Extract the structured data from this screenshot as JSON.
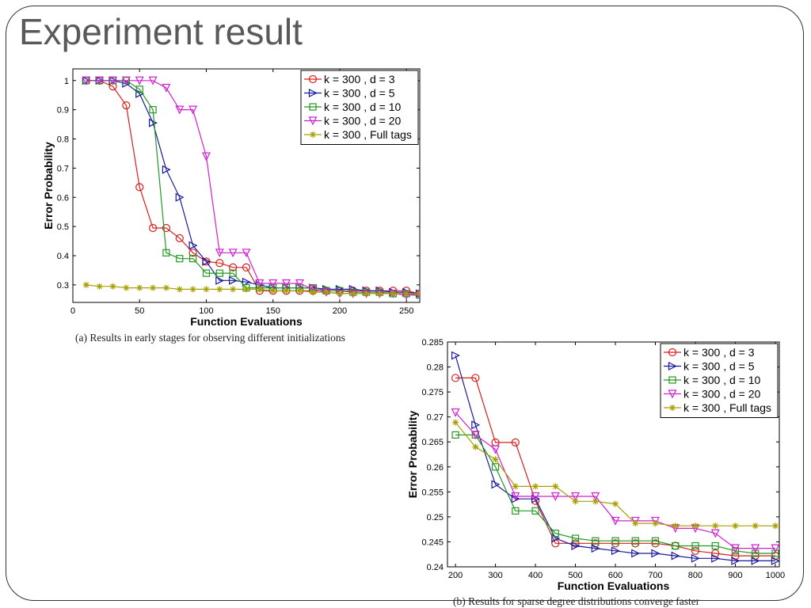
{
  "slide": {
    "title": "Experiment result",
    "caption_a": "(a) Results in early stages for observing different initializations",
    "caption_b": "(b) Results for sparse degree distributions converge faster"
  },
  "chart_data": [
    {
      "type": "line",
      "title": "",
      "xlabel": "Function Evaluations",
      "ylabel": "Error Probability",
      "xlim": [
        0,
        260
      ],
      "ylim": [
        0.24,
        1.04
      ],
      "xticks": [
        0,
        50,
        100,
        150,
        200,
        250
      ],
      "yticks": [
        0.3,
        0.4,
        0.5,
        0.6,
        0.7,
        0.8,
        0.9,
        1
      ],
      "legend_position": "top-right",
      "grid": false,
      "series": [
        {
          "name": "k = 300 , d = 3",
          "color": "#d62020",
          "marker": "circle",
          "x": [
            10,
            20,
            30,
            40,
            50,
            60,
            70,
            80,
            90,
            100,
            110,
            120,
            130,
            140,
            150,
            160,
            170,
            180,
            190,
            200,
            210,
            220,
            230,
            240,
            250,
            260
          ],
          "y": [
            1,
            1,
            0.98,
            0.915,
            0.635,
            0.495,
            0.495,
            0.46,
            0.41,
            0.38,
            0.375,
            0.36,
            0.36,
            0.28,
            0.28,
            0.28,
            0.28,
            0.28,
            0.28,
            0.28,
            0.28,
            0.28,
            0.28,
            0.28,
            0.28,
            0.27
          ]
        },
        {
          "name": "k = 300 , d = 5",
          "color": "#1a1aa0",
          "marker": "triangle-right",
          "x": [
            10,
            20,
            30,
            40,
            50,
            60,
            70,
            80,
            90,
            100,
            110,
            120,
            130,
            140,
            150,
            160,
            170,
            180,
            190,
            200,
            210,
            220,
            230,
            240,
            250,
            260
          ],
          "y": [
            1,
            1,
            1,
            0.99,
            0.955,
            0.855,
            0.695,
            0.6,
            0.435,
            0.38,
            0.315,
            0.315,
            0.31,
            0.3,
            0.29,
            0.29,
            0.29,
            0.29,
            0.285,
            0.285,
            0.285,
            0.28,
            0.28,
            0.275,
            0.275,
            0.27
          ]
        },
        {
          "name": "k = 300 , d = 10",
          "color": "#229922",
          "marker": "square",
          "x": [
            10,
            20,
            30,
            40,
            50,
            60,
            70,
            80,
            90,
            100,
            110,
            120,
            130,
            140,
            150,
            160,
            170,
            180,
            190,
            200,
            210,
            220,
            230,
            240,
            250,
            260
          ],
          "y": [
            1,
            1,
            1,
            1,
            0.97,
            0.9,
            0.41,
            0.39,
            0.39,
            0.34,
            0.34,
            0.34,
            0.29,
            0.29,
            0.29,
            0.29,
            0.29,
            0.29,
            0.28,
            0.28,
            0.275,
            0.275,
            0.275,
            0.27,
            0.27,
            0.265
          ]
        },
        {
          "name": "k = 300 , d = 20",
          "color": "#d020d0",
          "marker": "triangle-down",
          "x": [
            10,
            20,
            30,
            40,
            50,
            60,
            70,
            80,
            90,
            100,
            110,
            120,
            130,
            140,
            150,
            160,
            170,
            180,
            190,
            200,
            210,
            220,
            230,
            240,
            250,
            260
          ],
          "y": [
            1,
            1,
            1,
            1,
            1,
            1,
            0.975,
            0.9,
            0.9,
            0.74,
            0.41,
            0.41,
            0.41,
            0.305,
            0.305,
            0.305,
            0.305,
            0.285,
            0.275,
            0.27,
            0.27,
            0.27,
            0.27,
            0.27,
            0.265,
            0.265
          ]
        },
        {
          "name": "k = 300 , Full tags",
          "color": "#a8a000",
          "marker": "asterisk",
          "x": [
            10,
            20,
            30,
            40,
            50,
            60,
            70,
            80,
            90,
            100,
            110,
            120,
            130,
            140,
            150,
            160,
            170,
            180,
            190,
            200,
            210,
            220,
            230,
            240,
            250,
            260
          ],
          "y": [
            0.3,
            0.295,
            0.295,
            0.29,
            0.29,
            0.29,
            0.29,
            0.285,
            0.285,
            0.285,
            0.285,
            0.285,
            0.285,
            0.285,
            0.28,
            0.28,
            0.28,
            0.275,
            0.275,
            0.27,
            0.27,
            0.27,
            0.27,
            0.27,
            0.27,
            0.27
          ]
        }
      ]
    },
    {
      "type": "line",
      "title": "",
      "xlabel": "Function Evaluations",
      "ylabel": "Error Probability",
      "xlim": [
        180,
        1010
      ],
      "ylim": [
        0.24,
        0.285
      ],
      "xticks": [
        200,
        300,
        400,
        500,
        600,
        700,
        800,
        900,
        1000
      ],
      "yticks": [
        0.24,
        0.245,
        0.25,
        0.255,
        0.26,
        0.265,
        0.27,
        0.275,
        0.28,
        0.285
      ],
      "legend_position": "top-right",
      "grid": false,
      "series": [
        {
          "name": "k = 300 , d = 3",
          "color": "#d62020",
          "marker": "circle",
          "x": [
            200,
            250,
            300,
            350,
            400,
            450,
            500,
            550,
            600,
            650,
            700,
            750,
            800,
            850,
            900,
            950,
            1000
          ],
          "y": [
            0.2778,
            0.2778,
            0.2649,
            0.2649,
            0.2532,
            0.2447,
            0.2447,
            0.2447,
            0.2447,
            0.2447,
            0.2447,
            0.2442,
            0.2432,
            0.2427,
            0.2422,
            0.2422,
            0.2422
          ]
        },
        {
          "name": "k = 300 , d = 5",
          "color": "#1a1aa0",
          "marker": "triangle-right",
          "x": [
            200,
            250,
            300,
            350,
            400,
            450,
            500,
            550,
            600,
            650,
            700,
            750,
            800,
            850,
            900,
            950,
            1000
          ],
          "y": [
            0.2823,
            0.2684,
            0.2565,
            0.2536,
            0.2536,
            0.2457,
            0.2442,
            0.2437,
            0.2432,
            0.2427,
            0.2427,
            0.2422,
            0.2417,
            0.2417,
            0.2412,
            0.2412,
            0.2412
          ]
        },
        {
          "name": "k = 300 , d = 10",
          "color": "#229922",
          "marker": "square",
          "x": [
            200,
            250,
            300,
            350,
            400,
            450,
            500,
            550,
            600,
            650,
            700,
            750,
            800,
            850,
            900,
            950,
            1000
          ],
          "y": [
            0.2664,
            0.2664,
            0.26,
            0.2512,
            0.2512,
            0.2467,
            0.2457,
            0.2452,
            0.2452,
            0.2452,
            0.2452,
            0.2442,
            0.2442,
            0.2442,
            0.2432,
            0.2427,
            0.2427
          ]
        },
        {
          "name": "k = 300 , d = 20",
          "color": "#d020d0",
          "marker": "triangle-down",
          "x": [
            200,
            250,
            300,
            350,
            400,
            450,
            500,
            550,
            600,
            650,
            700,
            750,
            800,
            850,
            900,
            950,
            1000
          ],
          "y": [
            0.2709,
            0.2664,
            0.2635,
            0.2541,
            0.2541,
            0.2541,
            0.2541,
            0.2541,
            0.2492,
            0.2492,
            0.2492,
            0.2477,
            0.2477,
            0.2467,
            0.2437,
            0.2437,
            0.2437
          ]
        },
        {
          "name": "k = 300 , Full tags",
          "color": "#a8a000",
          "marker": "asterisk",
          "x": [
            200,
            250,
            300,
            350,
            400,
            450,
            500,
            550,
            600,
            650,
            700,
            750,
            800,
            850,
            900,
            950,
            1000
          ],
          "y": [
            0.2689,
            0.264,
            0.2615,
            0.2561,
            0.2561,
            0.2561,
            0.2531,
            0.2531,
            0.2526,
            0.2487,
            0.2487,
            0.2482,
            0.2482,
            0.2482,
            0.2482,
            0.2482,
            0.2482
          ]
        }
      ]
    }
  ]
}
